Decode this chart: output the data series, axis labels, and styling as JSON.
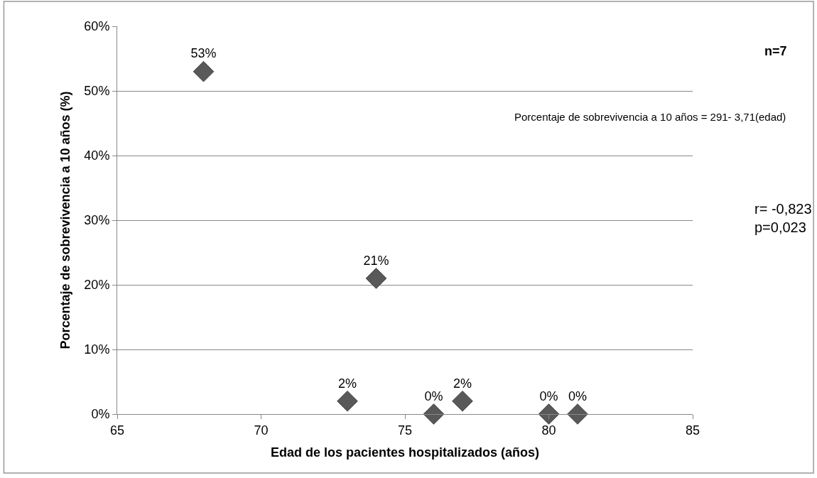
{
  "chart_data": {
    "type": "scatter",
    "xlabel": "Edad de los pacientes hospitalizados (años)",
    "ylabel": "Porcentaje de sobrevivencia a 10 años (%)",
    "series": [
      {
        "color": "#595959",
        "x": [
          68,
          73,
          74,
          76,
          77,
          80,
          81
        ],
        "values": [
          53,
          2,
          21,
          0,
          2,
          0,
          0
        ],
        "value_labels": [
          "53%",
          "2%",
          "21%",
          "0%",
          "2%",
          "0%",
          "0%"
        ]
      }
    ],
    "xlim": [
      65,
      85
    ],
    "xticks": [
      65,
      70,
      75,
      80,
      85
    ],
    "ylim": [
      0,
      60
    ],
    "yticks": [
      {
        "value": 0,
        "label": "0%"
      },
      {
        "value": 10,
        "label": "10%"
      },
      {
        "value": 20,
        "label": "20%"
      },
      {
        "value": 30,
        "label": "30%"
      },
      {
        "value": 40,
        "label": "40%"
      },
      {
        "value": 50,
        "label": "50%"
      },
      {
        "value": 60,
        "label": "60%"
      }
    ],
    "annotations": [
      "n=7",
      "Porcentaje de sobrevivencia a 10 años = 291- 3,71(edad)",
      "r= -0,823\np=0,023"
    ],
    "grid": "y",
    "marker": "diamond",
    "legend": false
  }
}
